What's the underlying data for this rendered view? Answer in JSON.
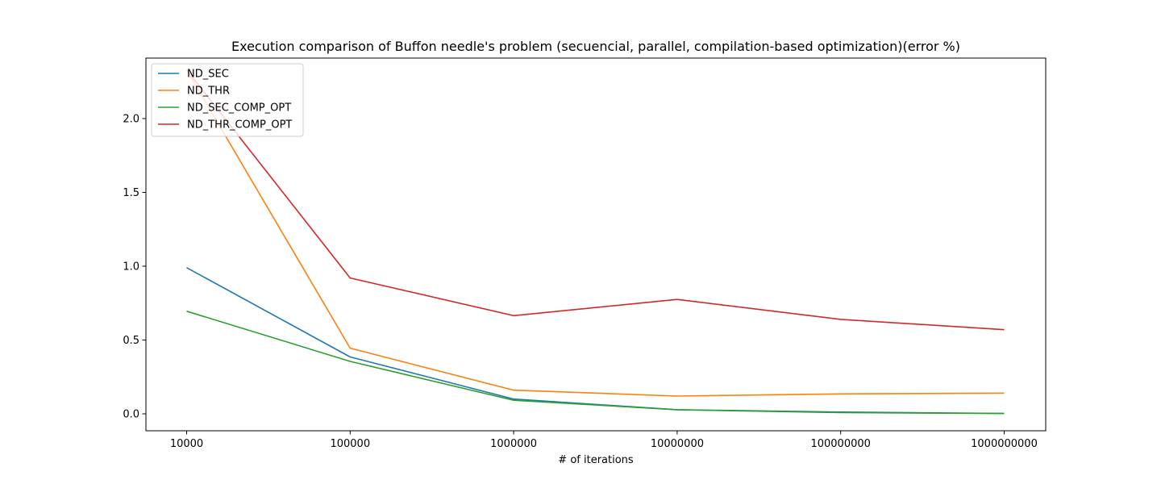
{
  "chart_data": {
    "type": "line",
    "title": "Execution comparison of Buffon needle's problem (secuencial, parallel, compilation-based optimization)(error %)",
    "xlabel": "# of iterations",
    "ylabel": "",
    "categories": [
      "10000",
      "100000",
      "1000000",
      "10000000",
      "100000000",
      "1000000000"
    ],
    "yticks": [
      "0.0",
      "0.5",
      "1.0",
      "1.5",
      "2.0"
    ],
    "ylim": [
      -0.1,
      2.35
    ],
    "grid": false,
    "legend_position": "top-left",
    "series": [
      {
        "name": "ND_SEC",
        "color": "#1f77b4",
        "values": [
          0.99,
          0.385,
          0.1,
          0.028,
          0.012,
          0.003
        ]
      },
      {
        "name": "ND_THR",
        "color": "#ff7f0e",
        "values": [
          2.33,
          0.445,
          0.16,
          0.12,
          0.135,
          0.14
        ]
      },
      {
        "name": "ND_SEC_COMP_OPT",
        "color": "#2ca02c",
        "values": [
          0.695,
          0.355,
          0.092,
          0.028,
          0.008,
          0.002
        ]
      },
      {
        "name": "ND_THR_COMP_OPT",
        "color": "#d62728",
        "values": [
          2.33,
          0.92,
          0.665,
          0.775,
          0.64,
          0.57
        ]
      }
    ]
  }
}
